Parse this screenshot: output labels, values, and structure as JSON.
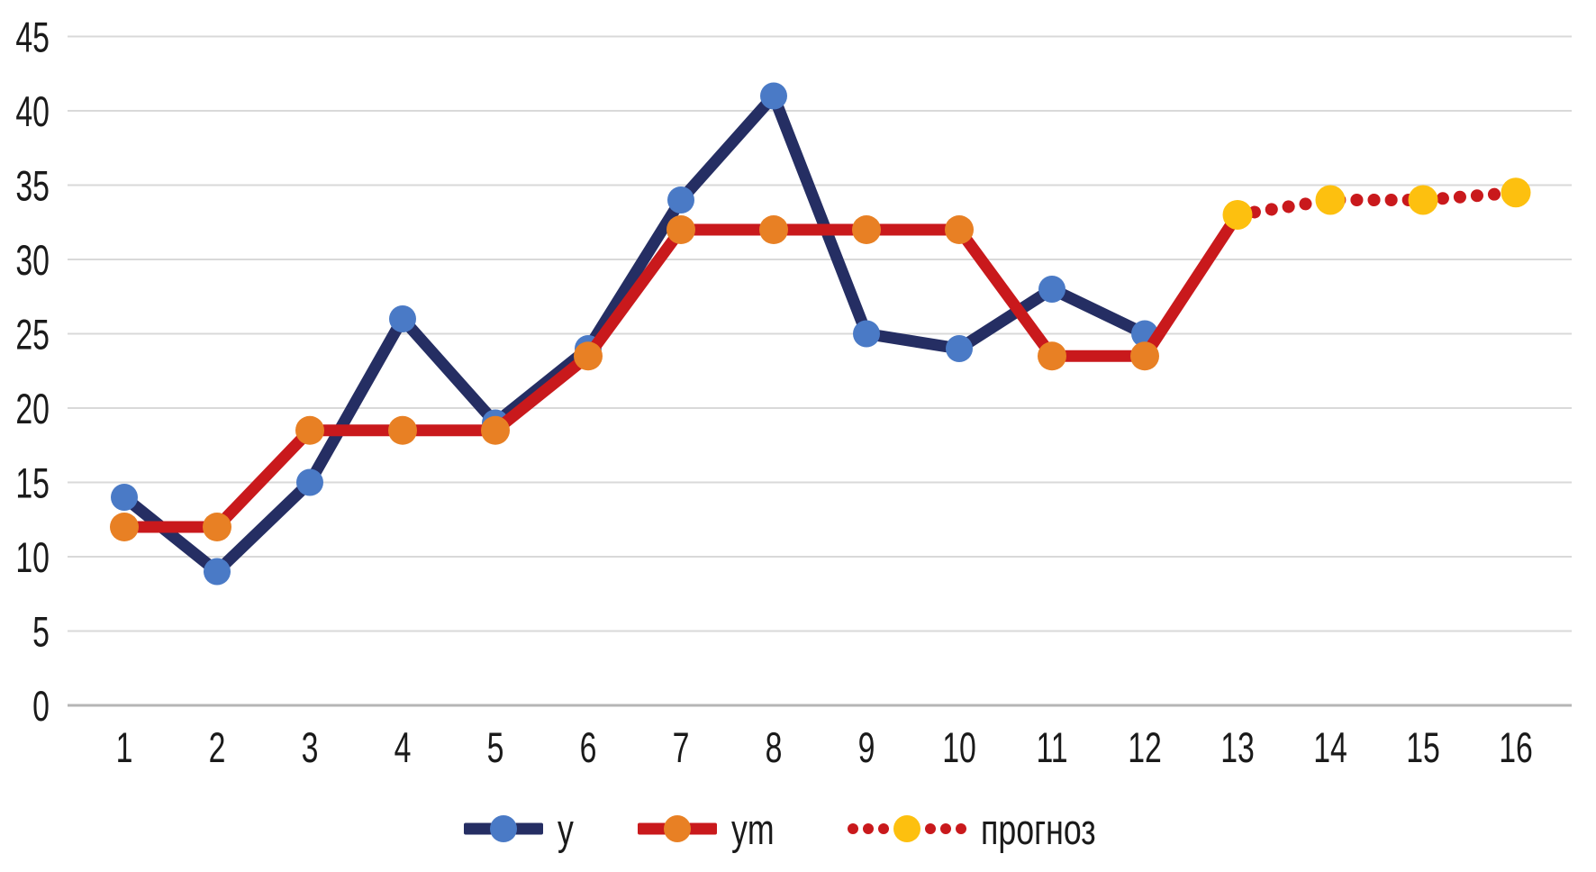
{
  "chart_data": {
    "type": "line",
    "title": "",
    "xlabel": "",
    "ylabel": "",
    "x": [
      1,
      2,
      3,
      4,
      5,
      6,
      7,
      8,
      9,
      10,
      11,
      12,
      13,
      14,
      15,
      16
    ],
    "yticks": [
      0,
      5,
      10,
      15,
      20,
      25,
      30,
      35,
      40,
      45
    ],
    "ylim": [
      0,
      45
    ],
    "grid": true,
    "legend_position": "bottom-center",
    "series": [
      {
        "name": "y",
        "line_style": "solid",
        "line_color": "#252e63",
        "marker_color": "#4a7ac6",
        "values": [
          14,
          9,
          15,
          26,
          19,
          24,
          34,
          41,
          25,
          24,
          28,
          25,
          null,
          null,
          null,
          null
        ]
      },
      {
        "name": "ym",
        "line_style": "solid",
        "line_color": "#c9191c",
        "marker_color": "#e88024",
        "values": [
          12,
          12,
          18.5,
          18.5,
          18.5,
          23.5,
          32,
          32,
          32,
          32,
          23.5,
          23.5,
          33,
          null,
          null,
          null
        ]
      },
      {
        "name": "прогноз",
        "line_style": "dotted",
        "line_color": "#c9191c",
        "marker_color": "#fdc00f",
        "values": [
          null,
          null,
          null,
          null,
          null,
          null,
          null,
          null,
          null,
          null,
          null,
          null,
          33,
          34,
          34,
          34.5
        ]
      }
    ]
  },
  "style": {
    "background": "#ffffff",
    "grid_color": "#d9d9d9",
    "zero_axis_color": "#b5b5b5",
    "tick_color": "#1a1a1a"
  }
}
